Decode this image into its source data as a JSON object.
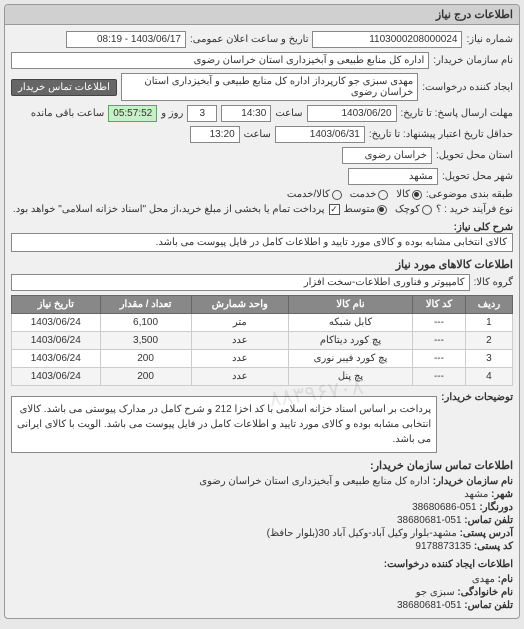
{
  "panel": {
    "title": "اطلاعات درج نیاز"
  },
  "info": {
    "request_number_label": "شماره نیاز:",
    "request_number": "1103000208000024",
    "announce_label": "تاریخ و ساعت اعلان عمومی:",
    "announce_value": "1403/06/17 - 08:19",
    "buyer_name_label": "نام سازمان خریدار:",
    "buyer_name": "اداره کل منابع طبیعی و آبخیزداری استان خراسان رضوی",
    "creator_label": "ایجاد کننده درخواست:",
    "creator_value": "مهدی سبزی جو کارپرداز اداره کل منابع طبیعی و آبخیزداری استان خراسان رضوی",
    "contact_btn": "اطلاعات تماس خریدار",
    "deadline_send_label": "مهلت ارسال پاسخ: تا تاریخ:",
    "deadline_send_date": "1403/06/20",
    "time_label": "ساعت",
    "deadline_send_time": "14:30",
    "days_label": "روز و",
    "days_value": "3",
    "remaining_label": "ساعت باقی مانده",
    "remaining_value": "05:57:52",
    "deadline_reply_label": "حداقل تاریخ اعتبار پیشنهاد: تا تاریخ:",
    "deadline_reply_date": "1403/06/31",
    "deadline_reply_time": "13:20",
    "province_label": "استان محل تحویل:",
    "province_value": "خراسان رضوی",
    "city_label": "شهر محل تحویل:",
    "city_value": "مشهد",
    "cls_label": "طبقه بندی موضوعی:",
    "cls_goods": "کالا",
    "cls_service": "خدمت",
    "cls_both": "کالا/خدمت",
    "proc_label": "نوع فرآیند خرید : ؟",
    "proc_small": "کوچک",
    "proc_medium": "متوسط",
    "proc_note": "پرداخت تمام یا بخشی از مبلغ خرید،از محل \"اسناد خزانه اسلامی\" خواهد بود."
  },
  "desc": {
    "label": "شرح کلی نیاز:",
    "value": "کالای انتخابی مشابه بوده و کالای مورد تایید و اطلاعات کامل در فایل پیوست می باشد."
  },
  "goods_group": {
    "heading": "اطلاعات کالاهای مورد نیاز",
    "label": "گروه کالا:",
    "value": "کامپیوتر و فناوری اطلاعات-سخت افزار"
  },
  "table": {
    "headers": [
      "ردیف",
      "کد کالا",
      "نام کالا",
      "واحد شمارش",
      "تعداد / مقدار",
      "تاریخ نیاز"
    ],
    "rows": [
      [
        "1",
        "---",
        "کابل شبکه",
        "متر",
        "6,100",
        "1403/06/24"
      ],
      [
        "2",
        "---",
        "پچ کورد دیتاکام",
        "عدد",
        "3,500",
        "1403/06/24"
      ],
      [
        "3",
        "---",
        "پچ کورد فیبر نوری",
        "عدد",
        "200",
        "1403/06/24"
      ],
      [
        "4",
        "---",
        "پچ پنل",
        "عدد",
        "200",
        "1403/06/24"
      ]
    ]
  },
  "buyer_desc": {
    "label": "توضیحات خریدار:",
    "text": "پرداخت بر اساس اسناد خزانه اسلامی با کد اخزا 212 و شرح کامل در مدارک پیوستی می باشد. کالای انتخابی مشابه بوده و کالای مورد تایید و اطلاعات کامل در فایل پیوست می باشد. الویت با کالای ایرانی می باشد."
  },
  "contact": {
    "heading": "اطلاعات تماس سازمان خریدار:",
    "org_label": "نام سازمان خریدار:",
    "org_value": "اداره کل منابع طبیعی و آبخیزداری استان خراسان رضوی",
    "city_label": "شهر:",
    "city_value": "مشهد",
    "fax_label": "دورنگار:",
    "fax_value": "051-38680686",
    "tel_label": "تلفن تماس:",
    "tel_value": "051-38680681",
    "addr_label": "آدرس پستی:",
    "addr_value": "مشهد-بلوار وکیل آباد-وکیل آباد 30(بلوار حافظ)",
    "post_label": "کد پستی:",
    "post_value": "9178873135",
    "creator_heading": "اطلاعات ایجاد کننده درخواست:",
    "name_label": "نام:",
    "name_value": "مهدی",
    "family_label": "نام خانوادگی:",
    "family_value": "سبزی جو",
    "creator_tel_label": "تلفن تماس:",
    "creator_tel_value": "051-38680681"
  },
  "watermark": "۸۸۳۹۶۷۰۸"
}
